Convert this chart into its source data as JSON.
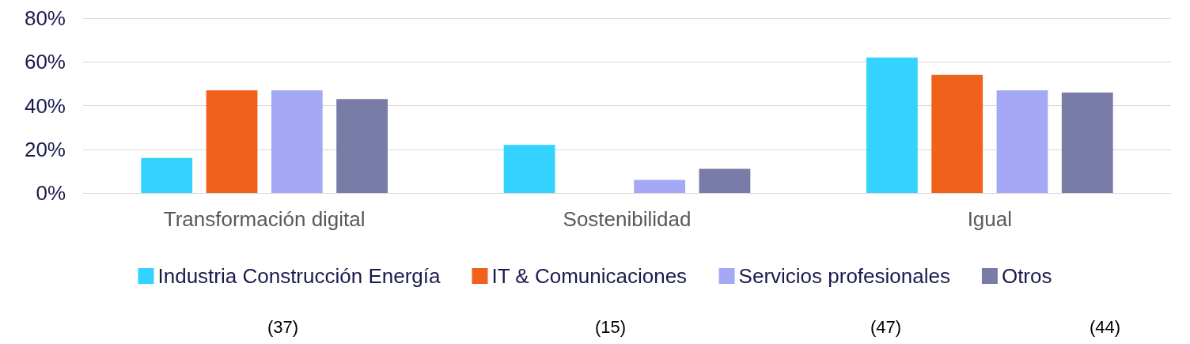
{
  "chart_data": {
    "type": "bar",
    "categories": [
      "Transformación digital",
      "Sostenibilidad",
      "Igual"
    ],
    "series": [
      {
        "name": "Industria Construcción Energía",
        "color": "#33d2ff",
        "values": [
          16,
          22,
          62
        ]
      },
      {
        "name": "IT & Comunicaciones",
        "color": "#f0611c",
        "values": [
          47,
          0,
          54
        ]
      },
      {
        "name": "Servicios profesionales",
        "color": "#a5a8f5",
        "values": [
          47,
          6,
          47
        ]
      },
      {
        "name": "Otros",
        "color": "#7a7ca8",
        "values": [
          43,
          11,
          46
        ]
      }
    ],
    "ylim": [
      0,
      80
    ],
    "yticks": [
      {
        "value": 0,
        "label": "0%"
      },
      {
        "value": 20,
        "label": "20%"
      },
      {
        "value": 40,
        "label": "40%"
      },
      {
        "value": 60,
        "label": "60%"
      },
      {
        "value": 80,
        "label": "80%"
      }
    ],
    "grid": "y",
    "legend": "bottom",
    "annotations": [
      "(37)",
      "(15)",
      "(47)",
      "(44)"
    ]
  }
}
